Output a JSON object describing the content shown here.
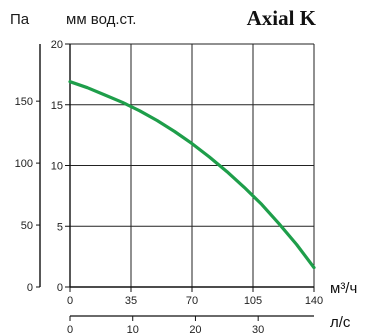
{
  "chart_data": {
    "type": "line",
    "title": "Axial K",
    "y_left_label": "Па",
    "y_right_label": "мм вод.ст.",
    "x_label_top": "м³/ч",
    "x_label_bottom": "л/с",
    "x_range": [
      0,
      140
    ],
    "x_ticks": [
      "0",
      "35",
      "70",
      "105",
      "140"
    ],
    "x_bottom_range": [
      0,
      38.9
    ],
    "x_bottom_ticks": [
      "0",
      "10",
      "20",
      "30"
    ],
    "y_range_mm": [
      0,
      20
    ],
    "y_ticks_mm": [
      "0",
      "5",
      "10",
      "15",
      "20"
    ],
    "y_ticks_pa": [
      "0",
      "50",
      "100",
      "150"
    ],
    "grid": true,
    "series": [
      {
        "color": "#1e9e4a",
        "x": [
          0,
          10,
          20,
          30,
          40,
          50,
          60,
          70,
          80,
          90,
          100,
          110,
          120,
          130,
          140
        ],
        "y": [
          16.9,
          16.4,
          15.8,
          15.2,
          14.5,
          13.7,
          12.8,
          11.8,
          10.7,
          9.5,
          8.2,
          6.8,
          5.2,
          3.5,
          1.6
        ]
      }
    ]
  }
}
